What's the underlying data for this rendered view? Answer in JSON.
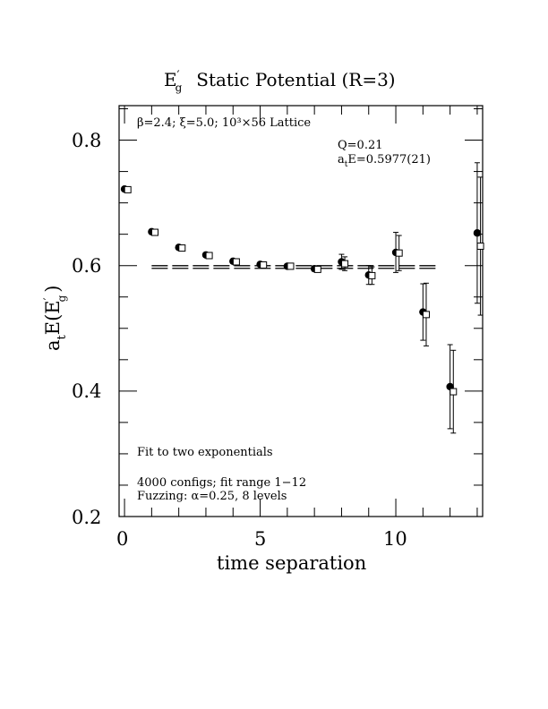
{
  "chart_data": {
    "type": "scatter",
    "title": "E′g  Static Potential (R=3)",
    "title_parts": {
      "main": "E",
      "prime": "′",
      "sub": "g",
      "rest": "Static Potential (R=3)"
    },
    "xlabel": "time separation",
    "ylabel": "aₜE(E′g)",
    "ylabel_parts": {
      "a": "a",
      "a_sub": "t",
      "mid": "E(E",
      "prime": "′",
      "sub": "g",
      "end": ")"
    },
    "xlim": [
      -0.2,
      13.2
    ],
    "ylim": [
      0.2,
      0.855
    ],
    "xticks": [
      0,
      5,
      10
    ],
    "yticks": [
      0.2,
      0.4,
      0.6,
      0.8
    ],
    "xtick_labels": [
      "0",
      "5",
      "10"
    ],
    "ytick_labels": [
      "0.2",
      "0.4",
      "0.6",
      "0.8"
    ],
    "annotations": {
      "lattice": "β=2.4; ξ=5.0; 10³×56 Lattice",
      "q": "Q=0.21",
      "energy": "aₜE=0.5977(21)",
      "energy_parts": {
        "a": "a",
        "sub": "t",
        "rest": "E=0.5977(21)"
      },
      "fit": "Fit to two exponentials",
      "configs": "4000 configs; fit range 1−12",
      "fuzzing": "Fuzzing: α=0.25, 8 levels"
    },
    "fit_line": {
      "value": 0.5977,
      "error": 0.0021,
      "x_range": [
        1,
        11.5
      ]
    },
    "series": [
      {
        "marker": "filled-circle",
        "x": [
          0,
          1,
          2,
          3,
          4,
          5,
          6,
          7,
          8,
          9,
          10,
          11,
          12,
          13
        ],
        "y": [
          0.722,
          0.654,
          0.629,
          0.617,
          0.607,
          0.602,
          0.599,
          0.595,
          0.606,
          0.585,
          0.621,
          0.526,
          0.407,
          0.652
        ],
        "err": [
          0.002,
          0.002,
          0.002,
          0.002,
          0.002,
          0.003,
          0.003,
          0.004,
          0.012,
          0.015,
          0.032,
          0.045,
          0.067,
          0.112
        ]
      },
      {
        "marker": "open-square",
        "x": [
          0.12,
          1.12,
          2.12,
          3.12,
          4.12,
          5.12,
          6.12,
          7.12,
          8.12,
          9.12,
          10.12,
          11.12,
          12.12,
          13.12
        ],
        "y": [
          0.721,
          0.653,
          0.628,
          0.616,
          0.606,
          0.601,
          0.599,
          0.594,
          0.603,
          0.584,
          0.62,
          0.522,
          0.399,
          0.631
        ],
        "err": [
          0.002,
          0.002,
          0.002,
          0.002,
          0.002,
          0.003,
          0.003,
          0.004,
          0.011,
          0.014,
          0.028,
          0.05,
          0.066,
          0.11
        ]
      }
    ]
  }
}
